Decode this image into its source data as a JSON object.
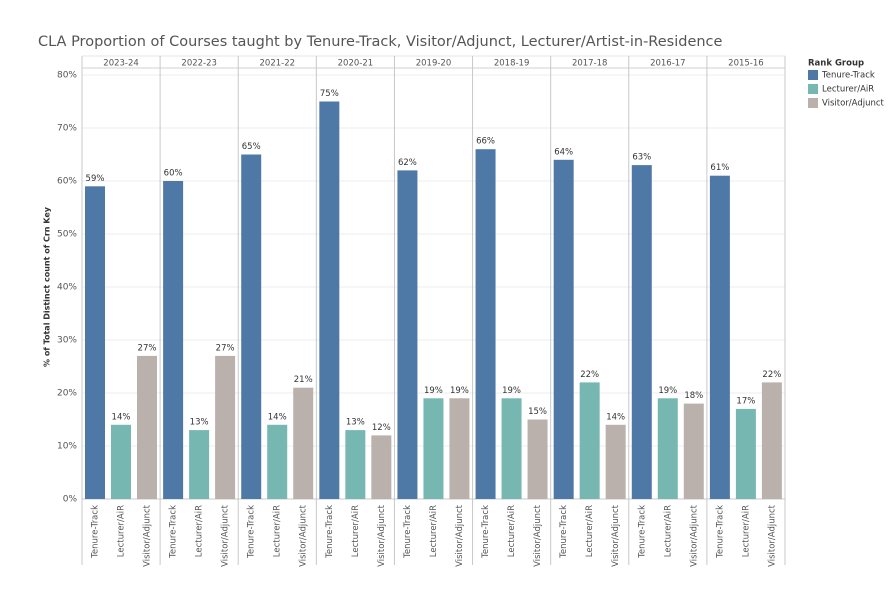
{
  "chart_data": {
    "type": "bar",
    "title": "CLA Proportion of Courses taught by Tenure-Track, Visitor/Adjunct, Lecturer/Artist-in-Residence",
    "y_label": "% of Total Distinct count of Crn Key",
    "legend_title": "Rank Group",
    "legend": "right",
    "grid": true,
    "categories": [
      "2023-24",
      "2022-23",
      "2021-22",
      "2020-21",
      "2019-20",
      "2018-19",
      "2017-18",
      "2016-17",
      "2015-16"
    ],
    "series": [
      {
        "name": "Tenure-Track",
        "color": "#4e79a7",
        "values": [
          59,
          60,
          65,
          75,
          62,
          66,
          64,
          63,
          61
        ],
        "value_labels": [
          "59%",
          "60%",
          "65%",
          "75%",
          "62%",
          "66%",
          "64%",
          "63%",
          "61%"
        ]
      },
      {
        "name": "Lecturer/AiR",
        "color": "#76b7b2",
        "values": [
          14,
          13,
          14,
          13,
          19,
          19,
          22,
          19,
          17
        ],
        "value_labels": [
          "14%",
          "13%",
          "14%",
          "13%",
          "19%",
          "19%",
          "22%",
          "19%",
          "17%"
        ]
      },
      {
        "name": "Visitor/Adjunct",
        "color": "#bab0ac",
        "values": [
          27,
          27,
          21,
          12,
          19,
          15,
          14,
          18,
          22
        ],
        "value_labels": [
          "27%",
          "27%",
          "21%",
          "12%",
          "19%",
          "15%",
          "14%",
          "18%",
          "22%"
        ]
      }
    ],
    "ylim": [
      0,
      80
    ],
    "yticks": [
      {
        "value": 0,
        "label": "0%"
      },
      {
        "value": 10,
        "label": "10%"
      },
      {
        "value": 20,
        "label": "20%"
      },
      {
        "value": 30,
        "label": "30%"
      },
      {
        "value": 40,
        "label": "40%"
      },
      {
        "value": 50,
        "label": "50%"
      },
      {
        "value": 60,
        "label": "60%"
      },
      {
        "value": 70,
        "label": "70%"
      },
      {
        "value": 80,
        "label": "80%"
      }
    ]
  }
}
